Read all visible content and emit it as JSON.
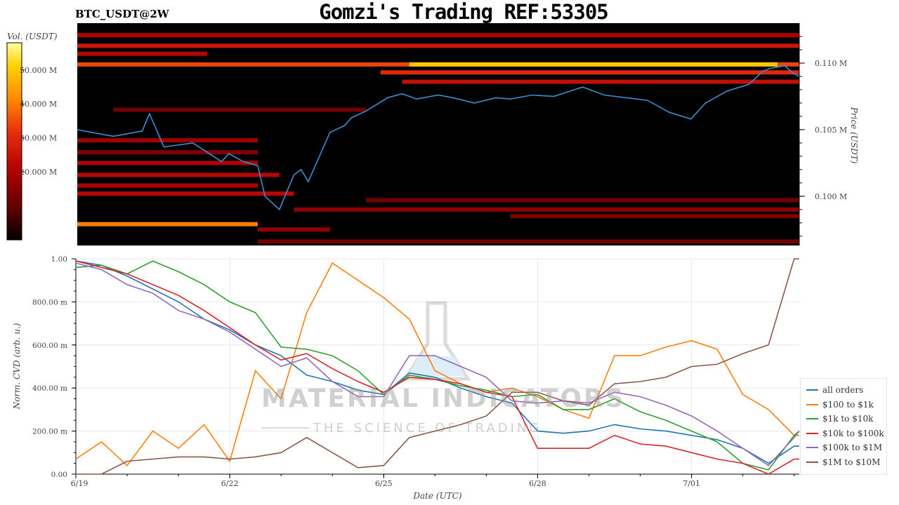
{
  "header": {
    "title": "Gomzi's Trading REF:53305",
    "pair": "BTC_USDT@2W"
  },
  "watermark": {
    "brand": "MATERIAL INDICATORS",
    "tagline": "THE SCIENCE OF TRADING"
  },
  "chart_data": [
    {
      "type": "heatmap",
      "name_shown": "",
      "colorbar": {
        "label": "Vol. (USDT)",
        "tick_labels": [
          "50.000 M",
          "40.000 M",
          "30.000 M",
          "20.000 M"
        ],
        "tick_values": [
          50,
          40,
          30,
          20
        ],
        "range": [
          0,
          58
        ],
        "colormap": [
          "#000000",
          "#5a0000",
          "#b00000",
          "#e83010",
          "#ff8c00",
          "#ffd000",
          "#ffffa0"
        ]
      },
      "price_axis": {
        "label": "Price (USDT)",
        "tick_labels": [
          "0.110 M",
          "0.105 M",
          "0.100 M"
        ],
        "tick_values": [
          110000,
          105000,
          100000
        ],
        "range": [
          96300,
          113000
        ]
      },
      "price_line": {
        "color": "#3a8fd0",
        "t": [
          0,
          0.05,
          0.09,
          0.1,
          0.12,
          0.16,
          0.2,
          0.21,
          0.23,
          0.25,
          0.26,
          0.28,
          0.3,
          0.31,
          0.32,
          0.35,
          0.37,
          0.38,
          0.4,
          0.43,
          0.45,
          0.47,
          0.5,
          0.52,
          0.55,
          0.58,
          0.6,
          0.63,
          0.66,
          0.7,
          0.73,
          0.76,
          0.79,
          0.82,
          0.85,
          0.87,
          0.9,
          0.93,
          0.95,
          0.96,
          0.98,
          0.99,
          1.0
        ],
        "price": [
          105000,
          104500,
          104900,
          106200,
          103700,
          104000,
          102600,
          103200,
          102600,
          102300,
          100000,
          99000,
          101600,
          102000,
          101100,
          104800,
          105300,
          105900,
          106400,
          107400,
          107700,
          107300,
          107600,
          107400,
          107000,
          107400,
          107300,
          107600,
          107500,
          108200,
          107600,
          107400,
          107200,
          106300,
          105800,
          107000,
          107900,
          108400,
          109400,
          109600,
          109800,
          109300,
          109000
        ]
      },
      "band_rows": [
        {
          "price": 112100,
          "t0": 0,
          "t1": 1,
          "level": 20
        },
        {
          "price": 111300,
          "t0": 0,
          "t1": 1,
          "level": 26
        },
        {
          "price": 110700,
          "t0": 0,
          "t1": 0.18,
          "level": 22
        },
        {
          "price": 109900,
          "t0": 0,
          "t1": 1,
          "level": 34
        },
        {
          "price": 109900,
          "t0": 0.46,
          "t1": 0.97,
          "level": 50
        },
        {
          "price": 109300,
          "t0": 0.42,
          "t1": 1,
          "level": 30
        },
        {
          "price": 108600,
          "t0": 0.45,
          "t1": 1,
          "level": 24
        },
        {
          "price": 106500,
          "t0": 0.05,
          "t1": 0.4,
          "level": 12
        },
        {
          "price": 104200,
          "t0": 0,
          "t1": 0.25,
          "level": 18
        },
        {
          "price": 103300,
          "t0": 0,
          "t1": 0.25,
          "level": 14
        },
        {
          "price": 102500,
          "t0": 0,
          "t1": 0.25,
          "level": 20
        },
        {
          "price": 101600,
          "t0": 0,
          "t1": 0.28,
          "level": 22
        },
        {
          "price": 100800,
          "t0": 0,
          "t1": 0.25,
          "level": 20
        },
        {
          "price": 100200,
          "t0": 0,
          "t1": 0.3,
          "level": 22
        },
        {
          "price": 99700,
          "t0": 0.4,
          "t1": 1,
          "level": 12
        },
        {
          "price": 99000,
          "t0": 0.3,
          "t1": 1,
          "level": 16
        },
        {
          "price": 98500,
          "t0": 0.6,
          "t1": 1,
          "level": 14
        },
        {
          "price": 97900,
          "t0": 0,
          "t1": 0.25,
          "level": 40
        },
        {
          "price": 97500,
          "t0": 0.25,
          "t1": 0.35,
          "level": 16
        },
        {
          "price": 96600,
          "t0": 0.25,
          "t1": 1,
          "level": 12
        }
      ]
    },
    {
      "type": "line",
      "xlabel": "Date (UTC)",
      "ylabel": "Norm. CVD (arb. u.)",
      "ylim": [
        0,
        1
      ],
      "y_tick_labels": [
        "1.00",
        "800.00 m",
        "600.00 m",
        "400.00 m",
        "200.00 m",
        "0.00"
      ],
      "y_tick_values": [
        1,
        0.8,
        0.6,
        0.4,
        0.2,
        0
      ],
      "x_tick_labels": [
        "6/19",
        "6/22",
        "6/25",
        "6/28",
        "7/01"
      ],
      "x_tick_values": [
        0,
        3,
        6,
        9,
        12
      ],
      "xlim": [
        0,
        14.1
      ],
      "grid": true,
      "legend_position": "bottom-right",
      "x": [
        0,
        0.5,
        1,
        1.5,
        2,
        2.5,
        3,
        3.5,
        4,
        4.5,
        5,
        5.5,
        6,
        6.5,
        7,
        7.5,
        8,
        8.5,
        9,
        9.5,
        10,
        10.5,
        11,
        11.5,
        12,
        12.5,
        13,
        13.5,
        14,
        14.1
      ],
      "series": [
        {
          "name": "all orders",
          "color": "#1f77b4",
          "values": [
            0.99,
            0.97,
            0.92,
            0.86,
            0.8,
            0.72,
            0.67,
            0.6,
            0.55,
            0.46,
            0.43,
            0.39,
            0.37,
            0.47,
            0.45,
            0.4,
            0.36,
            0.33,
            0.2,
            0.19,
            0.2,
            0.23,
            0.21,
            0.2,
            0.18,
            0.16,
            0.12,
            0.05,
            0.13,
            0.13
          ]
        },
        {
          "name": "$100 to $1k",
          "color": "#ff7f0e",
          "values": [
            0.07,
            0.15,
            0.04,
            0.2,
            0.12,
            0.23,
            0.06,
            0.48,
            0.35,
            0.75,
            0.98,
            0.9,
            0.82,
            0.72,
            0.48,
            0.42,
            0.38,
            0.4,
            0.36,
            0.3,
            0.26,
            0.55,
            0.55,
            0.59,
            0.62,
            0.58,
            0.37,
            0.3,
            0.18,
            0.18
          ]
        },
        {
          "name": "$1k to $10k",
          "color": "#2ca02c",
          "values": [
            0.96,
            0.97,
            0.93,
            0.99,
            0.94,
            0.88,
            0.8,
            0.75,
            0.59,
            0.58,
            0.55,
            0.48,
            0.37,
            0.46,
            0.44,
            0.41,
            0.39,
            0.36,
            0.37,
            0.3,
            0.3,
            0.35,
            0.29,
            0.25,
            0.2,
            0.15,
            0.05,
            0.02,
            0.18,
            0.2
          ]
        },
        {
          "name": "$10k to $100k",
          "color": "#d62728",
          "values": [
            0.99,
            0.96,
            0.93,
            0.88,
            0.83,
            0.76,
            0.68,
            0.6,
            0.53,
            0.56,
            0.49,
            0.43,
            0.38,
            0.45,
            0.44,
            0.42,
            0.38,
            0.36,
            0.12,
            0.12,
            0.12,
            0.18,
            0.14,
            0.13,
            0.1,
            0.07,
            0.05,
            0.0,
            0.07,
            0.07
          ]
        },
        {
          "name": "$100k to $1M",
          "color": "#9467bd",
          "values": [
            0.98,
            0.95,
            0.88,
            0.84,
            0.76,
            0.72,
            0.66,
            0.58,
            0.5,
            0.54,
            0.43,
            0.36,
            0.36,
            0.55,
            0.55,
            0.5,
            0.45,
            0.34,
            0.33,
            0.34,
            0.33,
            0.38,
            0.36,
            0.32,
            0.27,
            0.2,
            0.12,
            0.04,
            0.17,
            0.2
          ]
        },
        {
          "name": "$1M to $10M",
          "color": "#8c564b",
          "values": [
            0.0,
            0.0,
            0.06,
            0.07,
            0.08,
            0.08,
            0.07,
            0.08,
            0.1,
            0.17,
            0.1,
            0.03,
            0.04,
            0.17,
            0.2,
            0.23,
            0.27,
            0.38,
            0.38,
            0.34,
            0.32,
            0.42,
            0.43,
            0.45,
            0.5,
            0.51,
            0.56,
            0.6,
            1.0,
            1.0
          ]
        }
      ]
    }
  ]
}
